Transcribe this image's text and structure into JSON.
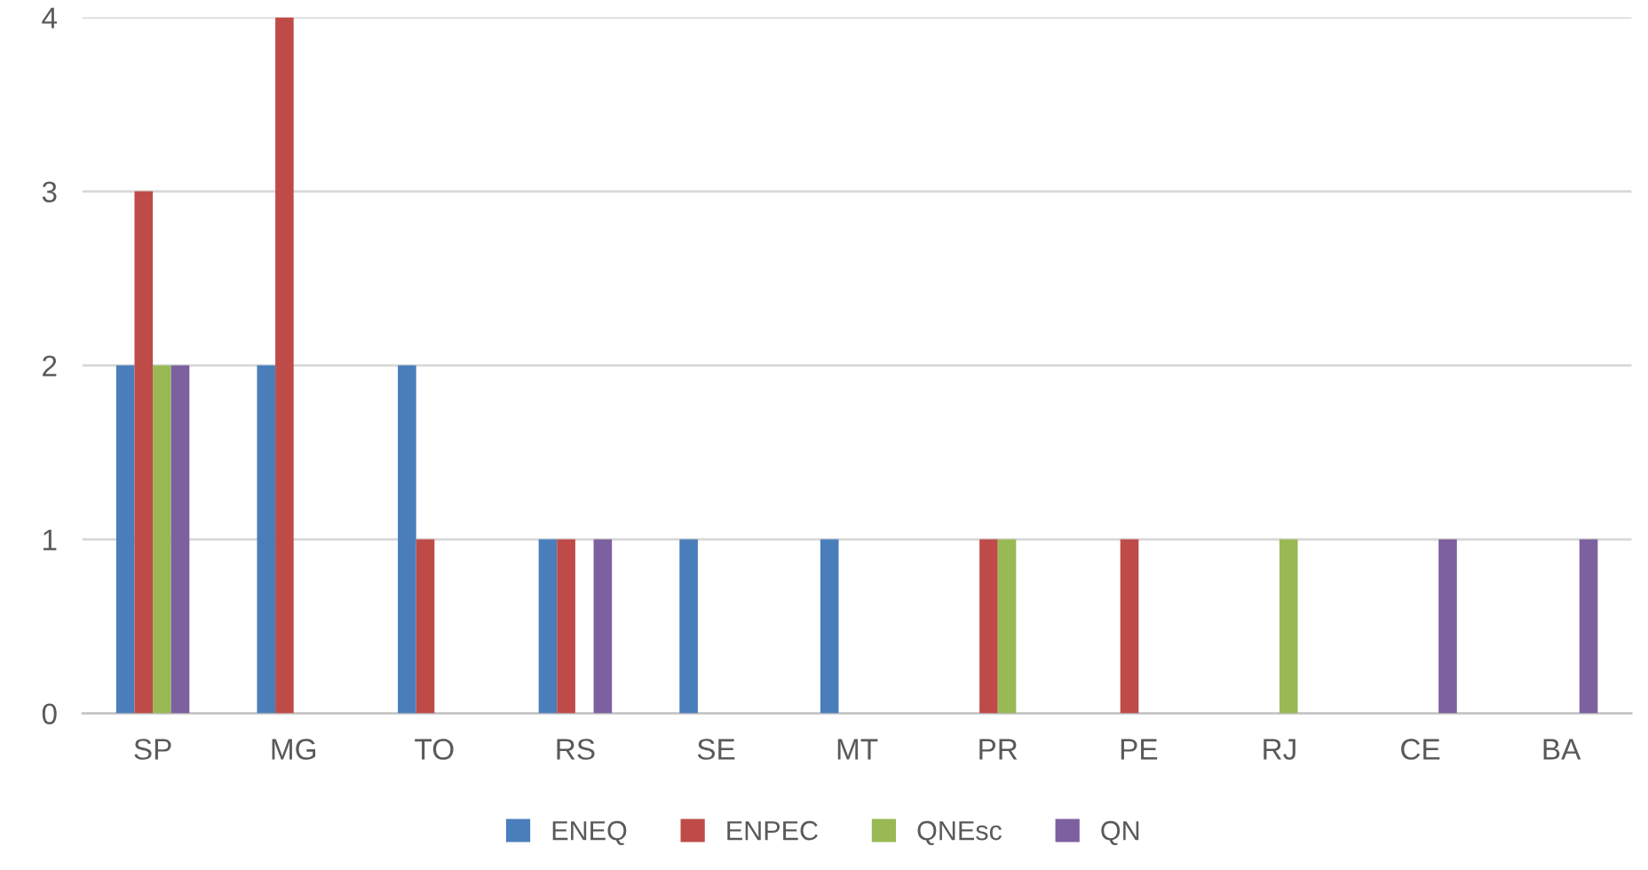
{
  "chart_data": {
    "type": "bar",
    "categories": [
      "SP",
      "MG",
      "TO",
      "RS",
      "SE",
      "MT",
      "PR",
      "PE",
      "RJ",
      "CE",
      "BA"
    ],
    "series": [
      {
        "name": "ENEQ",
        "color": "#4a7ebb",
        "values": [
          2,
          2,
          2,
          1,
          1,
          1,
          0,
          0,
          0,
          0,
          0
        ]
      },
      {
        "name": "ENPEC",
        "color": "#be4b48",
        "values": [
          3,
          4,
          1,
          1,
          0,
          0,
          1,
          1,
          0,
          0,
          0
        ]
      },
      {
        "name": "QNEsc",
        "color": "#98b954",
        "values": [
          2,
          0,
          0,
          0,
          0,
          0,
          1,
          0,
          1,
          0,
          0
        ]
      },
      {
        "name": "QN",
        "color": "#7d60a0",
        "values": [
          2,
          0,
          0,
          1,
          0,
          0,
          0,
          0,
          0,
          1,
          1
        ]
      }
    ],
    "ylim": [
      0,
      4
    ],
    "yticks": [
      0,
      1,
      2,
      3,
      4
    ],
    "grid": "y",
    "legend": "bottom"
  }
}
